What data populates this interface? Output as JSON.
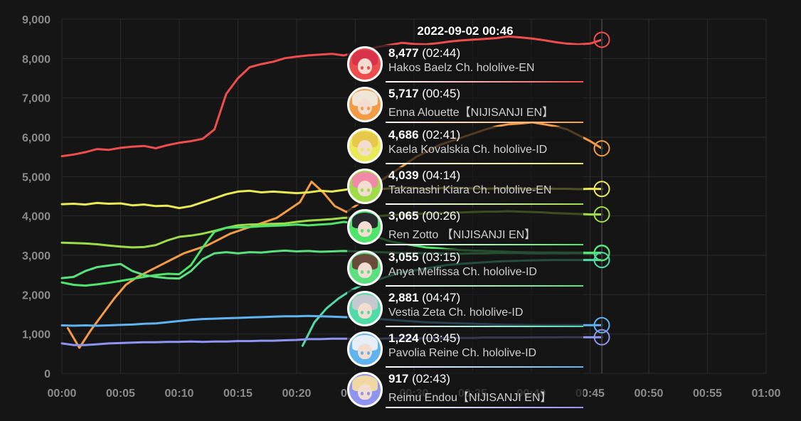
{
  "chart_data": {
    "type": "line",
    "title": "",
    "xlabel": "",
    "ylabel": "",
    "x_ticks": [
      "00:00",
      "00:05",
      "00:10",
      "00:15",
      "00:20",
      "00:25",
      "00:30",
      "00:35",
      "00:40",
      "00:45",
      "00:50",
      "00:55",
      "01:00"
    ],
    "y_ticks": [
      "0",
      "1,000",
      "2,000",
      "3,000",
      "4,000",
      "5,000",
      "6,000",
      "7,000",
      "8,000",
      "9,000"
    ],
    "x_range_minutes": [
      0,
      60
    ],
    "ylim": [
      0,
      9000
    ],
    "grid": true,
    "cursor_minute": 46,
    "tooltip": {
      "time": "2022-09-02 00:46",
      "rows": [
        {
          "value": "8,477",
          "duration": "(02:44)",
          "name": "Hakos Baelz Ch. hololive-EN",
          "color": "#ef4d4d"
        },
        {
          "value": "5,717",
          "duration": "(00:45)",
          "name": "Enna Alouette【NIJISANJI EN】",
          "color": "#f39b45"
        },
        {
          "value": "4,686",
          "duration": "(02:41)",
          "name": "Kaela Kovalskia Ch. hololive-ID",
          "color": "#e9ea55"
        },
        {
          "value": "4,039",
          "duration": "(04:14)",
          "name": "Takanashi Kiara Ch. hololive-EN",
          "color": "#9edc48"
        },
        {
          "value": "3,065",
          "duration": "(00:26)",
          "name": "Ren Zotto 【NIJISANJI EN】",
          "color": "#4ee56a"
        },
        {
          "value": "3,055",
          "duration": "(03:15)",
          "name": "Anya Melfissa Ch. hololive-ID",
          "color": "#5ae07e"
        },
        {
          "value": "2,881",
          "duration": "(04:47)",
          "name": "Vestia Zeta Ch. hololive-ID",
          "color": "#4fdba8"
        },
        {
          "value": "1,224",
          "duration": "(03:45)",
          "name": "Pavolia Reine Ch. hololive-ID",
          "color": "#5fb3ef"
        },
        {
          "value": "917",
          "duration": "(02:43)",
          "name": "Reimu Endou【NIJISANJI EN】",
          "color": "#8f94f2"
        }
      ]
    },
    "series": [
      {
        "color": "#ef4d4d",
        "start": 0,
        "end": 46,
        "values": [
          5520,
          5560,
          5620,
          5700,
          5680,
          5730,
          5760,
          5780,
          5720,
          5800,
          5860,
          5900,
          5960,
          6200,
          7100,
          7500,
          7780,
          7860,
          7920,
          8010,
          8050,
          8080,
          8100,
          8120,
          8080,
          8150,
          8230,
          8300,
          8350,
          8400,
          8370,
          8360,
          8390,
          8430,
          8460,
          8480,
          8500,
          8520,
          8560,
          8540,
          8510,
          8470,
          8420,
          8380,
          8360,
          8380,
          8477
        ]
      },
      {
        "color": "#f39b45",
        "start": 0.5,
        "end": 46,
        "values": [
          1150,
          650,
          1100,
          1500,
          1900,
          2250,
          2450,
          2600,
          2750,
          2900,
          3050,
          3150,
          3250,
          3400,
          3550,
          3650,
          3750,
          3850,
          3950,
          4150,
          4350,
          4870,
          4600,
          4250,
          4100,
          4300,
          4600,
          4900,
          5100,
          5300,
          5500,
          5650,
          5800,
          5900,
          6000,
          6100,
          6200,
          6280,
          6330,
          6350,
          6380,
          6330,
          6280,
          6200,
          6050,
          5900,
          5717
        ]
      },
      {
        "color": "#e9ea55",
        "start": 0,
        "end": 46,
        "values": [
          4300,
          4310,
          4290,
          4330,
          4310,
          4320,
          4270,
          4290,
          4250,
          4260,
          4200,
          4250,
          4350,
          4450,
          4550,
          4620,
          4640,
          4600,
          4620,
          4600,
          4580,
          4600,
          4640,
          4620,
          4660,
          4700,
          4690,
          4680,
          4700,
          4720,
          4710,
          4690,
          4700,
          4720,
          4710,
          4700,
          4690,
          4700,
          4710,
          4700,
          4690,
          4700,
          4690,
          4690,
          4680,
          4690,
          4686
        ]
      },
      {
        "color": "#9edc48",
        "start": 0,
        "end": 46,
        "values": [
          3320,
          3310,
          3300,
          3280,
          3250,
          3220,
          3200,
          3210,
          3260,
          3380,
          3470,
          3500,
          3550,
          3620,
          3700,
          3760,
          3780,
          3790,
          3800,
          3810,
          3850,
          3880,
          3900,
          3920,
          3950,
          3960,
          3980,
          4000,
          4020,
          4040,
          4050,
          4060,
          4070,
          4080,
          4090,
          4100,
          4110,
          4110,
          4120,
          4110,
          4100,
          4090,
          4070,
          4060,
          4050,
          4040,
          4039
        ]
      },
      {
        "color": "#4ee56a",
        "start": 0,
        "end": 46,
        "values": [
          2310,
          2250,
          2230,
          2260,
          2300,
          2350,
          2400,
          2450,
          2500,
          2530,
          2520,
          2750,
          3200,
          3600,
          3700,
          3710,
          3720,
          3740,
          3750,
          3760,
          3780,
          3760,
          3780,
          3800,
          3850,
          3820,
          3600,
          3450,
          3350,
          3300,
          3250,
          3200,
          3180,
          3150,
          3130,
          3120,
          3110,
          3100,
          3090,
          3080,
          3075,
          3070,
          3070,
          3068,
          3066,
          3065,
          3065
        ]
      },
      {
        "color": "#5ae07e",
        "start": 0,
        "end": 46,
        "values": [
          2420,
          2450,
          2600,
          2700,
          2740,
          2780,
          2600,
          2500,
          2450,
          2420,
          2410,
          2600,
          2900,
          3050,
          3080,
          3050,
          3080,
          3070,
          3100,
          3120,
          3100,
          3110,
          3090,
          3100,
          3110,
          3100,
          3090,
          3080,
          3070,
          3060,
          3060,
          3050,
          3050,
          3040,
          3040,
          3050,
          3050,
          3060,
          3060,
          3060,
          3050,
          3050,
          3055,
          3050,
          3055,
          3055,
          3055
        ]
      },
      {
        "color": "#4fdba8",
        "start": 20.5,
        "end": 46,
        "values": [
          700,
          1300,
          1650,
          1900,
          2100,
          2250,
          2350,
          2450,
          2550,
          2600,
          2650,
          2700,
          2750,
          2780,
          2800,
          2820,
          2840,
          2850,
          2860,
          2870,
          2875,
          2880,
          2880,
          2880,
          2881,
          2881
        ]
      },
      {
        "color": "#5fb3ef",
        "start": 0,
        "end": 46,
        "values": [
          1220,
          1210,
          1220,
          1210,
          1220,
          1230,
          1240,
          1260,
          1270,
          1300,
          1330,
          1360,
          1380,
          1390,
          1400,
          1410,
          1420,
          1430,
          1440,
          1450,
          1450,
          1460,
          1450,
          1440,
          1430,
          1420,
          1400,
          1380,
          1360,
          1340,
          1320,
          1300,
          1290,
          1280,
          1270,
          1260,
          1250,
          1240,
          1235,
          1230,
          1228,
          1226,
          1225,
          1224,
          1224,
          1224,
          1224
        ]
      },
      {
        "color": "#8f94f2",
        "start": 0,
        "end": 46,
        "values": [
          760,
          720,
          720,
          740,
          760,
          770,
          780,
          790,
          790,
          800,
          800,
          810,
          800,
          810,
          810,
          820,
          820,
          830,
          830,
          840,
          850,
          870,
          870,
          880,
          880,
          880,
          880,
          880,
          890,
          890,
          890,
          890,
          900,
          900,
          900,
          900,
          910,
          910,
          910,
          910,
          912,
          914,
          915,
          916,
          917,
          917,
          917
        ]
      }
    ]
  }
}
